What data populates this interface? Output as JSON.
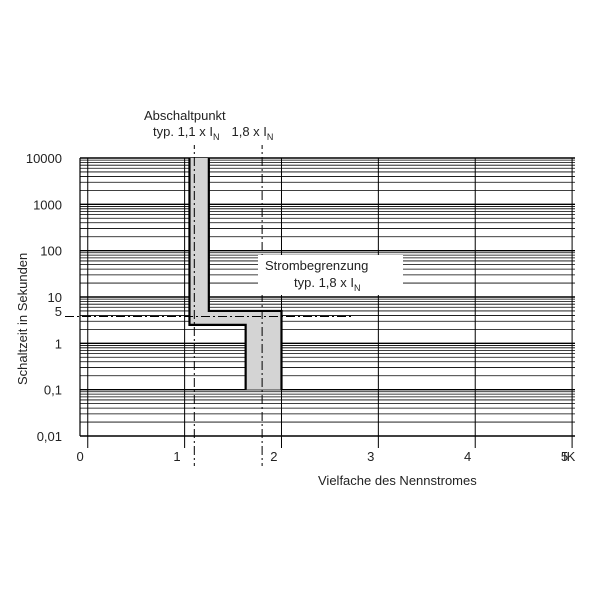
{
  "chart_data": {
    "type": "line",
    "title": "",
    "xlabel": "Vielfache des Nennstromes",
    "ylabel": "Schaltzeit in Sekunden",
    "x_scale": "linear",
    "y_scale": "log",
    "xlim": [
      -0.08,
      5.03
    ],
    "ylim": [
      0.01,
      10000
    ],
    "x_ticks": [
      {
        "value": 0,
        "label": "0"
      },
      {
        "value": 1,
        "label": "1"
      },
      {
        "value": 2,
        "label": "2"
      },
      {
        "value": 3,
        "label": "3"
      },
      {
        "value": 4,
        "label": "4"
      },
      {
        "value": 5,
        "label": "5"
      }
    ],
    "x_end_label": "IK",
    "y_ticks": [
      {
        "value": 10000,
        "label": "10000"
      },
      {
        "value": 1000,
        "label": "1000"
      },
      {
        "value": 100,
        "label": "100"
      },
      {
        "value": 10,
        "label": "10"
      },
      {
        "value": 5,
        "label": "5"
      },
      {
        "value": 1,
        "label": "1"
      },
      {
        "value": 0.1,
        "label": "0,1"
      },
      {
        "value": 0.01,
        "label": "0,01"
      }
    ],
    "grid": "horizontal log minor lines",
    "series": [
      {
        "values": [
          [
            1.25,
            10000
          ],
          [
            1.25,
            5
          ],
          [
            2.0,
            5
          ],
          [
            2.0,
            0.1
          ]
        ]
      },
      {
        "values": [
          [
            1.05,
            10000
          ],
          [
            1.05,
            2.5
          ],
          [
            1.63,
            2.5
          ],
          [
            1.63,
            0.1
          ]
        ]
      }
    ],
    "shaded_band": "between the two curves",
    "reference_lines": [
      {
        "axis": "x",
        "value": 1.1,
        "style": "dash-dot"
      },
      {
        "axis": "x",
        "value": 1.8,
        "style": "dash-dot"
      },
      {
        "axis": "y",
        "value": 3.8,
        "style": "dash-dot"
      }
    ],
    "annotations": {
      "abschalt": {
        "line1": "Abschaltpunkt",
        "line2a": "typ. 1,1 x I",
        "sub_a": "N",
        "line2b": "1,8 x I",
        "sub_b": "N"
      },
      "strom": {
        "line1": "Strombegrenzung",
        "line2": "typ. 1,8 x I",
        "sub": "N"
      }
    }
  }
}
